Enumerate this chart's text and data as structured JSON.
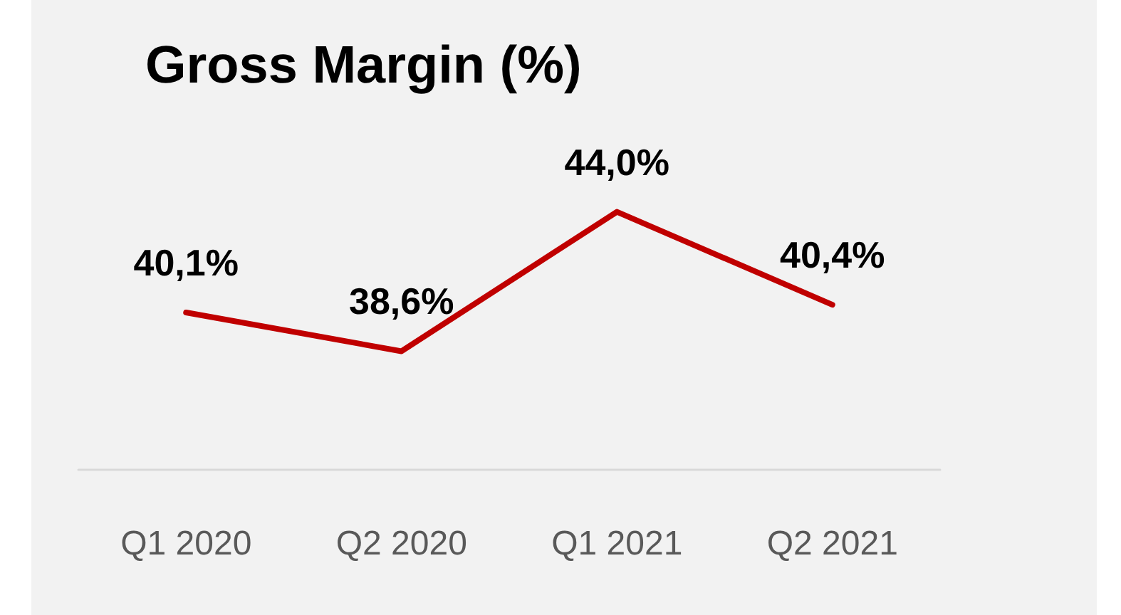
{
  "chart_data": {
    "type": "line",
    "title": "Gross Margin (%)",
    "categories": [
      "Q1 2020",
      "Q2 2020",
      "Q1 2021",
      "Q2 2021"
    ],
    "series": [
      {
        "color": "#c00000",
        "values": [
          40.1,
          38.6,
          44.0,
          40.4
        ],
        "value_labels": [
          "40,1%",
          "38,6%",
          "44,0%",
          "40,4%"
        ]
      }
    ],
    "tick_labels": "x",
    "grid": false,
    "marker": "none",
    "line_style": "solid"
  }
}
